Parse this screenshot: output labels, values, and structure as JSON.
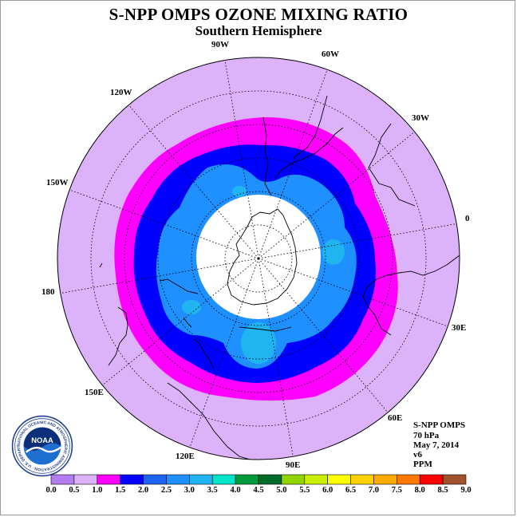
{
  "header": {
    "title": "S-NPP OMPS OZONE MIXING RATIO",
    "subtitle": "Southern Hemisphere"
  },
  "longitude_labels": {
    "lon_90w": "90W",
    "lon_60w": "60W",
    "lon_120w": "120W",
    "lon_30w": "30W",
    "lon_150w": "150W",
    "lon_0": "0",
    "lon_180": "180",
    "lon_30e": "30E",
    "lon_150e": "150E",
    "lon_60e": "60E",
    "lon_120e": "120E",
    "lon_90e": "90E"
  },
  "info": {
    "instrument": "S-NPP OMPS",
    "level": "70 hPa",
    "date": "May 7, 2014",
    "version": "v6",
    "units": "PPM"
  },
  "logo": {
    "text": "NOAA",
    "ring_text": "NATIONAL OCEANIC AND ATMOSPHERIC ADMINISTRATION · U.S. DEPARTMENT OF COMMERCE"
  },
  "colorbar": {
    "labels": [
      "0.0",
      "0.5",
      "1.0",
      "1.5",
      "2.0",
      "2.5",
      "3.0",
      "3.5",
      "4.0",
      "4.5",
      "5.0",
      "5.5",
      "6.0",
      "6.5",
      "7.0",
      "7.5",
      "8.0",
      "8.5",
      "9.0"
    ],
    "colors": [
      "#b57bf0",
      "#dcb3fb",
      "#ff00ff",
      "#0000ff",
      "#1e64f0",
      "#1e90ff",
      "#20b4f0",
      "#00e4c8",
      "#009b3c",
      "#006a2a",
      "#90d400",
      "#c8f000",
      "#ffff00",
      "#ffd200",
      "#ffaa00",
      "#ff7800",
      "#ff0000",
      "#a0522d"
    ]
  },
  "map": {
    "colors": {
      "outer": "#dcb3fb",
      "magenta": "#ff00ff",
      "blue": "#0000ff",
      "light_blue": "#1e90ff",
      "cyan": "#20b4f0",
      "no_data": "#ffffff"
    }
  }
}
